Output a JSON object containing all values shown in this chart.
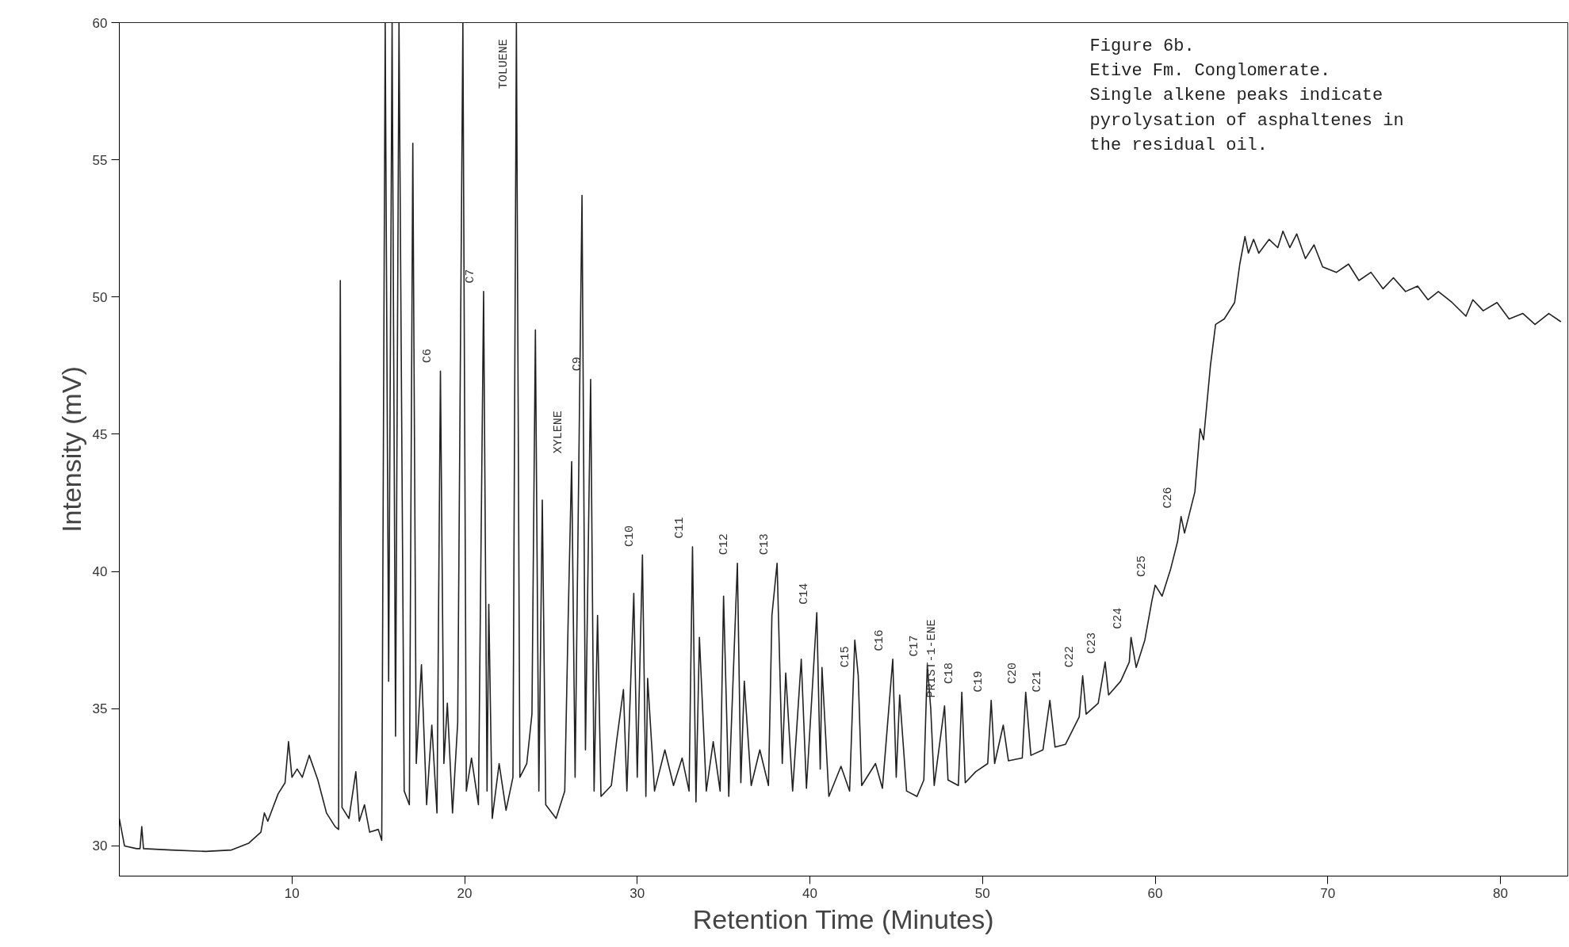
{
  "chart_data": {
    "type": "line",
    "xlabel": "Retention Time (Minutes)",
    "ylabel": "Intensity (mV)",
    "xlim": [
      0,
      83.9
    ],
    "ylim": [
      28.9,
      60
    ],
    "xticks": [
      10,
      20,
      30,
      40,
      50,
      60,
      70,
      80
    ],
    "yticks": [
      30,
      35,
      40,
      45,
      50,
      55,
      60
    ],
    "line_style": "solid",
    "series": [
      {
        "color": "#222222",
        "x": [
          0.0,
          0.3,
          1.0,
          1.2,
          1.3,
          1.4,
          3,
          5,
          6.5,
          7.5,
          8.2,
          8.4,
          8.6,
          9.2,
          9.6,
          9.8,
          10.0,
          10.3,
          10.6,
          11.0,
          11.5,
          12.0,
          12.5,
          12.7,
          12.8,
          12.9,
          13.3,
          13.7,
          13.9,
          14.2,
          14.5,
          15.0,
          15.2,
          15.4,
          15.6,
          15.8,
          16.0,
          16.2,
          16.5,
          16.8,
          17.0,
          17.2,
          17.5,
          17.8,
          18.1,
          18.4,
          18.6,
          18.8,
          19.0,
          19.3,
          19.6,
          19.9,
          20.1,
          20.4,
          20.8,
          21.1,
          21.3,
          21.4,
          21.6,
          22.0,
          22.4,
          22.8,
          23.0,
          23.2,
          23.6,
          23.9,
          24.1,
          24.3,
          24.5,
          24.7,
          25.3,
          25.8,
          26.0,
          26.2,
          26.4,
          26.8,
          27.0,
          27.3,
          27.5,
          27.7,
          27.9,
          28.5,
          28.8,
          29.2,
          29.4,
          29.8,
          30.0,
          30.3,
          30.5,
          30.6,
          31.0,
          31.6,
          32.1,
          32.6,
          33.0,
          33.2,
          33.4,
          33.6,
          34.0,
          34.4,
          34.8,
          35.0,
          35.3,
          35.8,
          36.0,
          36.2,
          36.6,
          37.1,
          37.6,
          37.8,
          38.1,
          38.4,
          38.6,
          39.0,
          39.5,
          39.8,
          40.4,
          40.6,
          40.7,
          41.1,
          41.8,
          42.3,
          42.6,
          42.8,
          43.0,
          43.8,
          44.2,
          44.8,
          45.0,
          45.2,
          45.6,
          46.2,
          46.6,
          46.8,
          47.0,
          47.2,
          47.8,
          48.0,
          48.6,
          48.8,
          49.0,
          49.6,
          50.3,
          50.5,
          50.7,
          51.2,
          51.5,
          52.3,
          52.5,
          52.8,
          53.5,
          53.9,
          54.2,
          54.8,
          55.6,
          55.8,
          56.0,
          56.7,
          57.1,
          57.3,
          58.0,
          58.5,
          58.6,
          58.9,
          59.4,
          59.8,
          60.0,
          60.4,
          60.9,
          61.3,
          61.5,
          61.7,
          62.3,
          62.6,
          62.8,
          63.2,
          63.5,
          64.0,
          64.6,
          64.9,
          65.2,
          65.4,
          65.7,
          66.0,
          66.6,
          67.1,
          67.4,
          67.8,
          68.2,
          68.7,
          69.2,
          69.7,
          70.5,
          71.2,
          71.8,
          72.5,
          73.2,
          73.8,
          74.5,
          75.2,
          75.8,
          76.4,
          77.2,
          78.0,
          78.4,
          79.0,
          79.8,
          80.5,
          81.3,
          82.0,
          82.8,
          83.5
        ],
        "values": [
          31.0,
          30.0,
          29.9,
          29.9,
          30.7,
          29.9,
          29.85,
          29.8,
          29.85,
          30.1,
          30.5,
          31.2,
          30.9,
          31.9,
          32.3,
          33.8,
          32.5,
          32.8,
          32.5,
          33.3,
          32.4,
          31.2,
          30.7,
          30.6,
          50.6,
          31.4,
          31.0,
          32.7,
          30.9,
          31.5,
          30.5,
          30.6,
          30.2,
          60,
          36,
          60,
          34,
          60,
          32,
          31.5,
          55.6,
          33,
          36.6,
          31.5,
          34.4,
          31.2,
          47.3,
          33,
          35.2,
          31.2,
          34.5,
          60,
          32,
          33.2,
          31.5,
          50.2,
          32,
          38.8,
          31,
          33,
          31.3,
          32.5,
          60,
          32.5,
          33,
          34.8,
          48.8,
          32,
          42.6,
          31.5,
          31,
          32,
          38.3,
          44,
          32.5,
          53.7,
          33.5,
          47.0,
          32,
          38.4,
          31.8,
          32.2,
          33.8,
          35.7,
          32,
          39.2,
          32.5,
          40.6,
          31.8,
          36.1,
          32,
          33.5,
          32.2,
          33.2,
          32,
          40.9,
          31.6,
          37.6,
          32,
          33.8,
          32,
          39.1,
          31.8,
          40.3,
          32.3,
          36.0,
          32.2,
          33.5,
          32.2,
          38.4,
          40.3,
          33,
          36.3,
          32,
          36.8,
          32.1,
          38.5,
          32.8,
          36.5,
          31.8,
          32.9,
          32,
          37.5,
          36.2,
          32.2,
          33,
          32.1,
          36.8,
          32.5,
          35.5,
          32,
          31.8,
          32.4,
          36.6,
          35,
          32.2,
          35.1,
          32.4,
          32.2,
          35.6,
          32.3,
          32.7,
          33,
          35.3,
          33,
          34.4,
          33.1,
          33.2,
          35.6,
          33.3,
          33.5,
          35.3,
          33.6,
          33.7,
          34.7,
          36.2,
          34.8,
          35.2,
          36.7,
          35.5,
          36,
          36.7,
          37.6,
          36.5,
          37.5,
          38.9,
          39.5,
          39.1,
          40.1,
          41.1,
          42.0,
          41.4,
          42.9,
          45.2,
          44.8,
          47.5,
          49.0,
          49.2,
          49.8,
          51.2,
          52.2,
          51.6,
          52.1,
          51.6,
          52.1,
          51.8,
          52.4,
          51.8,
          52.3,
          51.4,
          51.9,
          51.1,
          50.9,
          51.2,
          50.6,
          50.9,
          50.3,
          50.7,
          50.2,
          50.4,
          49.9,
          50.2,
          49.8,
          49.3,
          49.9,
          49.5,
          49.8,
          49.2,
          49.4,
          49.0,
          49.4,
          49.1
        ]
      }
    ],
    "annotations": [
      "Figure 6b.\nEtive Fm. Conglomerate.\nSingle alkene peaks indicate\npyrolysation of asphaltenes in\nthe residual oil.",
      {
        "text": "C6",
        "x": 18.6,
        "y": 47.3
      },
      {
        "text": "C7",
        "x": 21.1,
        "y": 50.2
      },
      {
        "text": "TOLUENE",
        "x": 23.0,
        "y": 60
      },
      {
        "text": "XYLENE",
        "x": 26.2,
        "y": 44
      },
      {
        "text": "C9",
        "x": 27.3,
        "y": 47.0
      },
      {
        "text": "C10",
        "x": 30.3,
        "y": 40.6
      },
      {
        "text": "C11",
        "x": 33.2,
        "y": 40.9
      },
      {
        "text": "C12",
        "x": 35.8,
        "y": 40.3
      },
      {
        "text": "C13",
        "x": 38.1,
        "y": 40.3
      },
      {
        "text": "C14",
        "x": 40.4,
        "y": 38.5
      },
      {
        "text": "C15",
        "x": 42.8,
        "y": 36.2
      },
      {
        "text": "C16",
        "x": 44.8,
        "y": 36.8
      },
      {
        "text": "C17",
        "x": 46.8,
        "y": 36.6
      },
      {
        "text": "PRIST-1-ENE",
        "x": 47.8,
        "y": 35.1
      },
      {
        "text": "C18",
        "x": 48.8,
        "y": 35.6
      },
      {
        "text": "C19",
        "x": 50.5,
        "y": 35.3
      },
      {
        "text": "C20",
        "x": 52.5,
        "y": 35.6
      },
      {
        "text": "C21",
        "x": 53.9,
        "y": 35.3
      },
      {
        "text": "C22",
        "x": 55.8,
        "y": 36.2
      },
      {
        "text": "C23",
        "x": 57.1,
        "y": 36.7
      },
      {
        "text": "C24",
        "x": 58.6,
        "y": 37.6
      },
      {
        "text": "C25",
        "x": 60.0,
        "y": 39.5
      },
      {
        "text": "C26",
        "x": 61.5,
        "y": 42.0
      }
    ]
  }
}
